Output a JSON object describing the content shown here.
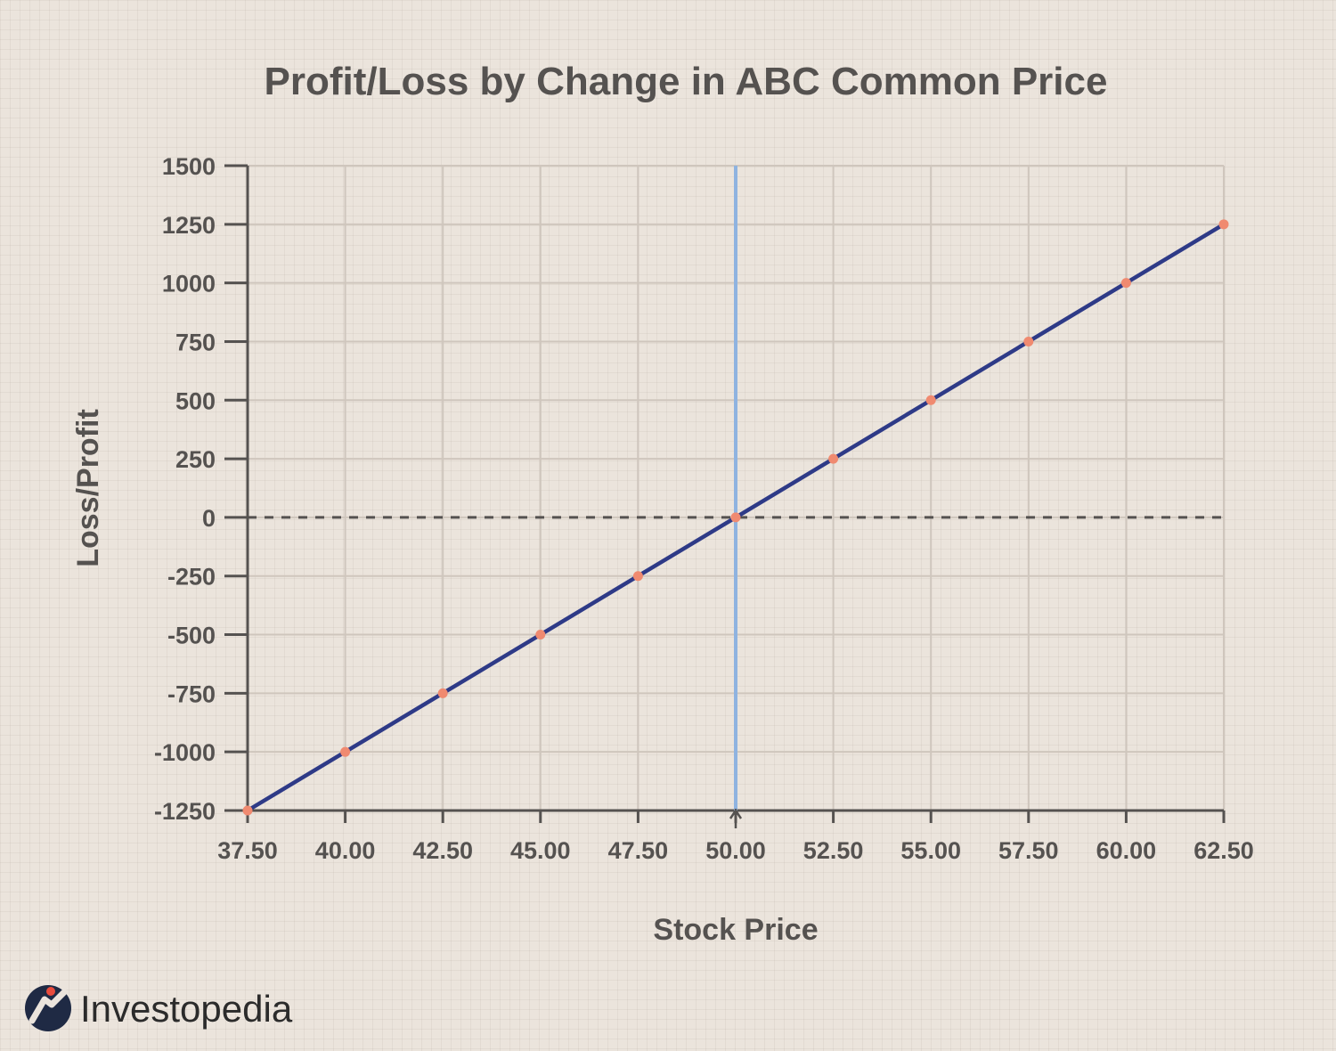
{
  "chart_data": {
    "type": "line",
    "title": "Profit/Loss by Change in ABC Common Price",
    "xlabel": "Stock Price",
    "ylabel": "Loss/Profit",
    "x_ticks": [
      "37.50",
      "40.00",
      "42.50",
      "45.00",
      "47.50",
      "50.00",
      "52.50",
      "55.00",
      "57.50",
      "60.00",
      "62.50"
    ],
    "y_ticks": [
      "1500",
      "1250",
      "1000",
      "750",
      "500",
      "250",
      "0",
      "-250",
      "-500",
      "-750",
      "-1000",
      "-1250"
    ],
    "xlim": [
      37.5,
      62.5
    ],
    "ylim": [
      -1250,
      1500
    ],
    "grid": true,
    "series": [
      {
        "x": [
          37.5,
          40,
          42.5,
          45,
          47.5,
          50,
          52.5,
          55,
          57.5,
          60,
          62.5
        ],
        "y": [
          -1250,
          -1000,
          -750,
          -500,
          -250,
          0,
          250,
          500,
          750,
          1000,
          1250
        ],
        "color": "#2e3a87",
        "marker_color": "#f08a70"
      }
    ],
    "reference_lines": [
      {
        "orientation": "vertical",
        "x": 50,
        "color": "#8fb3e0"
      },
      {
        "orientation": "horizontal",
        "y": 0,
        "style": "dashed",
        "color": "#555250"
      }
    ]
  },
  "brand": {
    "name": "Investopedia",
    "accent": "#e94b3c",
    "mark_color": "#1f2a44"
  }
}
